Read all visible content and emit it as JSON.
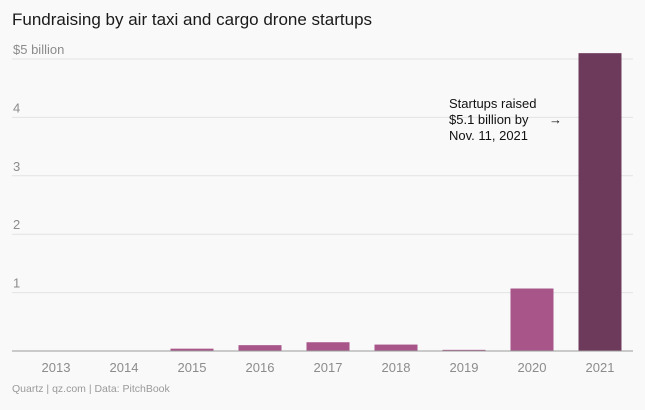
{
  "header": {
    "title": "Fundraising by air taxi and cargo drone startups"
  },
  "footer": {
    "source": "Quartz | qz.com | Data: PitchBook"
  },
  "chart_data": {
    "type": "bar",
    "title": "Fundraising by air taxi and cargo drone startups",
    "xlabel": "",
    "ylabel": "",
    "ylim": [
      0,
      5
    ],
    "y_ticks": [
      {
        "value": 1,
        "label": "1"
      },
      {
        "value": 2,
        "label": "2"
      },
      {
        "value": 3,
        "label": "3"
      },
      {
        "value": 4,
        "label": "4"
      },
      {
        "value": 5,
        "label": "$5 billion"
      }
    ],
    "categories": [
      "2013",
      "2014",
      "2015",
      "2016",
      "2017",
      "2018",
      "2019",
      "2020",
      "2021"
    ],
    "values": [
      0.0,
      0.0,
      0.04,
      0.1,
      0.15,
      0.11,
      0.02,
      1.07,
      5.1
    ],
    "colors": [
      "#a8558a",
      "#a8558a",
      "#a8558a",
      "#a8558a",
      "#a8558a",
      "#a8558a",
      "#a8558a",
      "#a8558a",
      "#6e3a5c"
    ],
    "annotation": {
      "lines": [
        "Startups raised",
        "$5.1 billion by",
        "Nov. 11, 2021"
      ],
      "arrow": "→",
      "target_category": "2021"
    }
  }
}
